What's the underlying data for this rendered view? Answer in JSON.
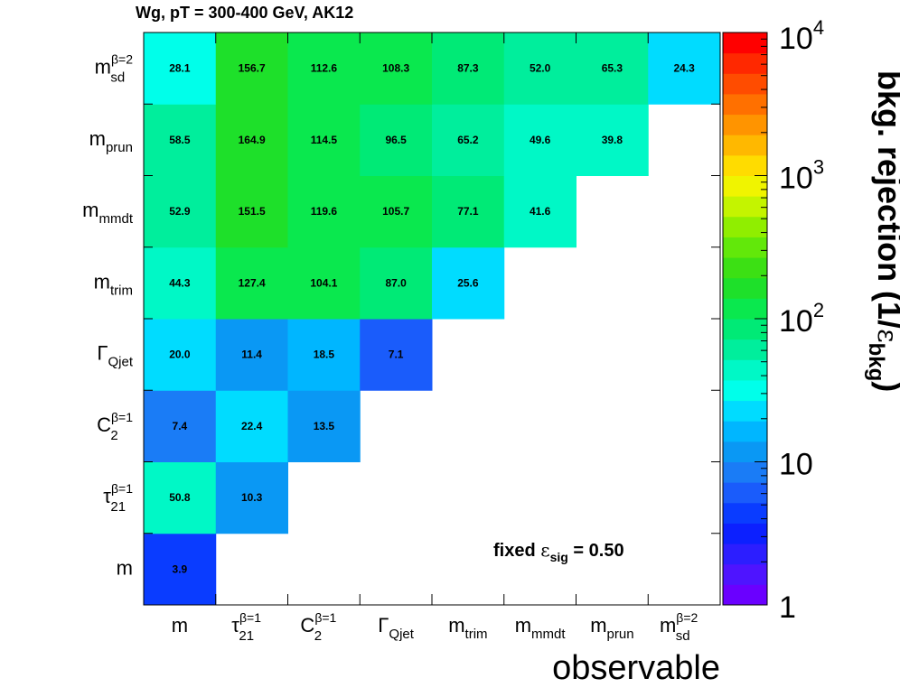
{
  "chart_data": {
    "type": "heatmap",
    "title": "Wg, pT = 300-400 GeV, AK12",
    "xlabel": "observable",
    "zlabel": "bkg. rejection (1/ε_bkg)",
    "zlabel_parts": {
      "main": "bkg. rejection (1/",
      "eps": "ε",
      "sub": "bkg",
      "close": ")"
    },
    "annotation": {
      "text": "fixed ",
      "eps": "ε",
      "sub": "sig",
      "rest": " = 0.50"
    },
    "z_scale": "log",
    "z_range": [
      1,
      10000
    ],
    "z_ticks": [
      {
        "base": "1",
        "exp": ""
      },
      {
        "base": "10",
        "exp": ""
      },
      {
        "base": "10",
        "exp": "2"
      },
      {
        "base": "10",
        "exp": "3"
      },
      {
        "base": "10",
        "exp": "4"
      }
    ],
    "observables": [
      {
        "base": "m",
        "sub": "",
        "sup": ""
      },
      {
        "base": "τ",
        "sub": "21",
        "sup": "β=1"
      },
      {
        "base": "C",
        "sub": "2",
        "sup": "β=1"
      },
      {
        "base": "Γ",
        "sub": "Qjet",
        "sup": ""
      },
      {
        "base": "m",
        "sub": "trim",
        "sup": ""
      },
      {
        "base": "m",
        "sub": "mmdt",
        "sup": ""
      },
      {
        "base": "m",
        "sub": "prun",
        "sup": ""
      },
      {
        "base": "m",
        "sub": "sd",
        "sup": "β=2"
      }
    ],
    "values": [
      [
        3.9
      ],
      [
        50.8,
        10.3
      ],
      [
        7.4,
        22.4,
        13.5
      ],
      [
        20.0,
        11.4,
        18.5,
        7.1
      ],
      [
        44.3,
        127.4,
        104.1,
        87.0,
        25.6
      ],
      [
        52.9,
        151.5,
        119.6,
        105.7,
        77.1,
        41.6
      ],
      [
        58.5,
        164.9,
        114.5,
        96.5,
        65.2,
        49.6,
        39.8
      ],
      [
        28.1,
        156.7,
        112.6,
        108.3,
        87.3,
        52.0,
        65.3,
        24.3
      ]
    ],
    "palette": [
      "#6a00ff",
      "#4e14ff",
      "#2c1eff",
      "#0c20ff",
      "#0a3cff",
      "#1a5cfb",
      "#1a7cf6",
      "#0a98f4",
      "#00b6ff",
      "#00dcff",
      "#00ffea",
      "#00f8c6",
      "#00ee9c",
      "#00ea76",
      "#0ae84e",
      "#1ee02a",
      "#3ce014",
      "#62e80a",
      "#90ee00",
      "#c4f400",
      "#f0f400",
      "#ffdc00",
      "#ffb800",
      "#ff9400",
      "#ff7000",
      "#ff4c00",
      "#ff2800",
      "#ff0000"
    ]
  }
}
